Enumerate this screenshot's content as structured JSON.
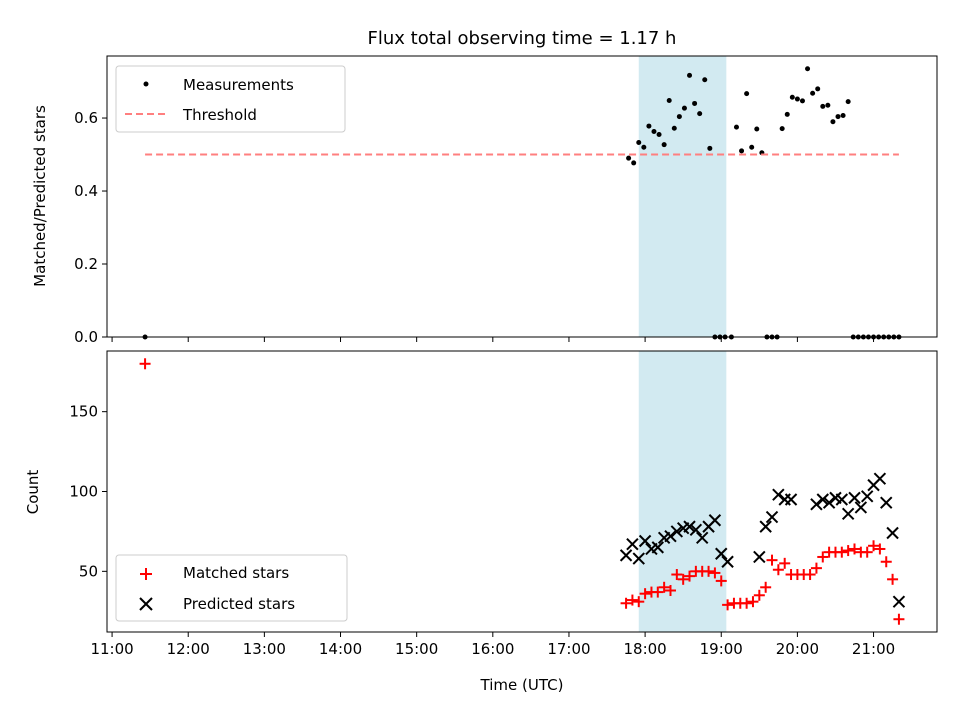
{
  "chart_data": [
    {
      "type": "scatter",
      "title": "Flux total observing time = 1.17 h",
      "xlabel": "",
      "ylabel": "Matched/Predicted stars",
      "xlim": [
        "10:56",
        "21:50"
      ],
      "ylim": [
        0,
        0.77
      ],
      "yticks": [
        0.0,
        0.2,
        0.4,
        0.6
      ],
      "ytick_labels": [
        "0.0",
        "0.2",
        "0.4",
        "0.6"
      ],
      "legend_position": "upper-left",
      "highlight_span": {
        "start": "17:55",
        "end": "19:04",
        "color": "#add8e6"
      },
      "threshold_range": [
        "11:26",
        "21:20"
      ],
      "series": [
        {
          "name": "Measurements",
          "marker": "dot",
          "color": "#000000",
          "x": [
            "11:26",
            "17:47",
            "17:51",
            "17:55",
            "17:59",
            "18:03",
            "18:07",
            "18:11",
            "18:15",
            "18:19",
            "18:23",
            "18:27",
            "18:31",
            "18:35",
            "18:39",
            "18:43",
            "18:47",
            "18:51",
            "18:55",
            "18:59",
            "19:03",
            "19:08",
            "19:12",
            "19:16",
            "19:20",
            "19:24",
            "19:28",
            "19:32",
            "19:36",
            "19:40",
            "19:44",
            "19:48",
            "19:52",
            "19:56",
            "20:00",
            "20:04",
            "20:08",
            "20:12",
            "20:16",
            "20:20",
            "20:24",
            "20:28",
            "20:32",
            "20:36",
            "20:40",
            "20:44",
            "20:48",
            "20:52",
            "20:56",
            "21:00",
            "21:04",
            "21:08",
            "21:12",
            "21:16",
            "21:20"
          ],
          "values": [
            0.0,
            0.49,
            0.477,
            0.533,
            0.52,
            0.578,
            0.563,
            0.555,
            0.527,
            0.648,
            0.572,
            0.604,
            0.627,
            0.717,
            0.64,
            0.612,
            0.705,
            0.517,
            0.0,
            0.0,
            0.0,
            0.0,
            0.575,
            0.51,
            0.667,
            0.52,
            0.57,
            0.505,
            0.0,
            0.0,
            0.0,
            0.571,
            0.61,
            0.657,
            0.652,
            0.647,
            0.735,
            0.668,
            0.68,
            0.632,
            0.635,
            0.59,
            0.604,
            0.607,
            0.645,
            0.0,
            0.0,
            0.0,
            0.0,
            0.0,
            0.0,
            0.0,
            0.0,
            0.0,
            0.0
          ]
        },
        {
          "name": "Threshold",
          "type": "line",
          "style": "dashed",
          "color": "#ff7f7f",
          "x": [
            "11:26",
            "21:20"
          ],
          "values": [
            0.5,
            0.5
          ]
        }
      ]
    },
    {
      "type": "scatter",
      "title": "",
      "xlabel": "Time (UTC)",
      "ylabel": "Count",
      "xlim": [
        "10:56",
        "21:50"
      ],
      "ylim": [
        12,
        188
      ],
      "yticks": [
        50,
        100,
        150
      ],
      "ytick_labels": [
        "50",
        "100",
        "150"
      ],
      "xticks": [
        "11:00",
        "12:00",
        "13:00",
        "14:00",
        "15:00",
        "16:00",
        "17:00",
        "18:00",
        "19:00",
        "20:00",
        "21:00"
      ],
      "legend_position": "lower-left",
      "highlight_span": {
        "start": "17:55",
        "end": "19:04",
        "color": "#add8e6"
      },
      "series": [
        {
          "name": "Matched stars",
          "marker": "plus",
          "color": "#ff0000",
          "x": [
            "11:26",
            "17:45",
            "17:50",
            "17:55",
            "18:00",
            "18:05",
            "18:10",
            "18:15",
            "18:20",
            "18:25",
            "18:30",
            "18:35",
            "18:40",
            "18:45",
            "18:50",
            "18:55",
            "19:00",
            "19:05",
            "19:10",
            "19:15",
            "19:20",
            "19:25",
            "19:30",
            "19:35",
            "19:40",
            "19:45",
            "19:50",
            "19:55",
            "20:00",
            "20:05",
            "20:10",
            "20:15",
            "20:20",
            "20:25",
            "20:30",
            "20:35",
            "20:40",
            "20:45",
            "20:50",
            "20:55",
            "21:00",
            "21:05",
            "21:10",
            "21:15",
            "21:20"
          ],
          "values": [
            180,
            30,
            32,
            31,
            36,
            37,
            37,
            40,
            38,
            48,
            45,
            47,
            50,
            50,
            50,
            49,
            44,
            29,
            30,
            30,
            30,
            31,
            35,
            40,
            57,
            51,
            55,
            48,
            48,
            48,
            48,
            52,
            59,
            62,
            62,
            62,
            63,
            64,
            62,
            62,
            66,
            64,
            56,
            45,
            20
          ]
        },
        {
          "name": "Predicted stars",
          "marker": "x",
          "color": "#000000",
          "x": [
            "17:45",
            "17:50",
            "17:55",
            "18:00",
            "18:05",
            "18:10",
            "18:15",
            "18:20",
            "18:25",
            "18:30",
            "18:35",
            "18:40",
            "18:45",
            "18:50",
            "18:55",
            "19:00",
            "19:05",
            "19:30",
            "19:35",
            "19:40",
            "19:45",
            "19:50",
            "19:55",
            "20:15",
            "20:20",
            "20:25",
            "20:30",
            "20:35",
            "20:40",
            "20:45",
            "20:50",
            "20:55",
            "21:00",
            "21:05",
            "21:10",
            "21:15",
            "21:20"
          ],
          "values": [
            60,
            67,
            58,
            69,
            64,
            65,
            71,
            72,
            75,
            77,
            78,
            76,
            71,
            78,
            82,
            61,
            56,
            59,
            78,
            84,
            98,
            95,
            95,
            92,
            95,
            93,
            96,
            95,
            86,
            96,
            90,
            97,
            104,
            108,
            93,
            74,
            31
          ]
        }
      ]
    }
  ]
}
